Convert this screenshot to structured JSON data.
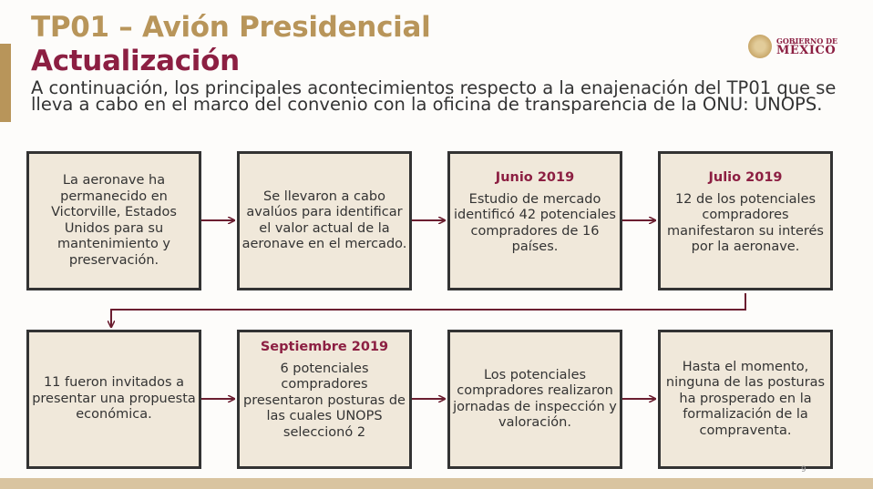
{
  "header": {
    "title": "TP01 – Avión Presidencial",
    "subtitle": "Actualización",
    "intro": "A continuación, los principales acontecimientos respecto a la enajenación del TP01 que se lleva a cabo en el marco del convenio con la oficina de transparencia de la ONU: UNOPS."
  },
  "logo": {
    "line1": "GOBIERNO DE",
    "line2": "MÉXICO",
    "icon": "national-seal-icon"
  },
  "steps": [
    {
      "date": "",
      "text": "La aeronave ha permanecido en Victorville, Estados Unidos para su mantenimiento y preservación."
    },
    {
      "date": "",
      "text": "Se llevaron a cabo avalúos para identificar el valor actual de la aeronave en el mercado."
    },
    {
      "date": "Junio 2019",
      "text": "Estudio de mercado identificó 42 potenciales compradores de 16 países."
    },
    {
      "date": "Julio 2019",
      "text": "12 de los potenciales compradores manifestaron su interés por la aeronave."
    },
    {
      "date": "",
      "text": "11 fueron invitados a presentar una propuesta económica."
    },
    {
      "date": "Septiembre 2019",
      "text": "6 potenciales compradores presentaron posturas de las cuales UNOPS seleccionó 2"
    },
    {
      "date": "",
      "text": "Los potenciales compradores realizaron jornadas de inspección y valoración."
    },
    {
      "date": "",
      "text": "Hasta el momento, ninguna de las posturas ha prosperado en la formalización de la compraventa."
    }
  ],
  "colors": {
    "gold": "#b8955a",
    "maroon": "#8c1f42",
    "arrow": "#6b1e30",
    "box_fill": "#f0e8da",
    "footer": "#d9c4a0"
  },
  "page_number": "9"
}
